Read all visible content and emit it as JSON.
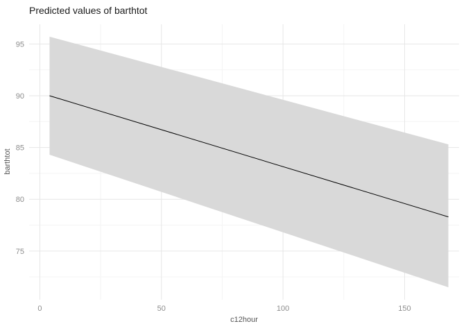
{
  "chart_data": {
    "type": "line",
    "title": "Predicted values of barthtot",
    "xlabel": "c12hour",
    "ylabel": "barthtot",
    "xlim": [
      -4.4,
      172.4
    ],
    "ylim": [
      70.3,
      96.9
    ],
    "x_ticks": [
      0,
      50,
      100,
      150
    ],
    "y_ticks": [
      75,
      80,
      85,
      90,
      95
    ],
    "x_minor_ticks": [
      25,
      75,
      125
    ],
    "y_minor_ticks": [
      72.5,
      77.5,
      82.5,
      87.5,
      92.5
    ],
    "grid": "major+minor",
    "legend": "none",
    "series": [
      {
        "name": "predicted",
        "x": [
          4,
          168
        ],
        "y": [
          90.0,
          78.3
        ],
        "conf_low": [
          84.3,
          71.5
        ],
        "conf_high": [
          95.7,
          85.3
        ],
        "line_color": "#000000",
        "ribbon_color": "#d9d9d9"
      }
    ],
    "colors": {
      "background": "#ffffff",
      "grid_major": "#e6e6e6",
      "grid_minor": "#f4f4f4",
      "tick_text": "#8c8c8c",
      "title_text": "#1a1a1a"
    }
  }
}
